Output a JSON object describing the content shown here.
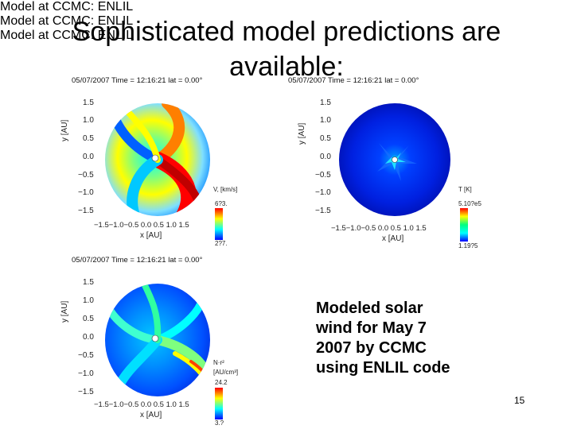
{
  "slide": {
    "title_line1": "Sophisticated model predictions are",
    "title_line2": "available:",
    "caption_lines": [
      "Modeled solar",
      "wind for May 7",
      "2007 by CCMC",
      "using ENLIL code"
    ],
    "page_number": "15"
  },
  "panels": [
    {
      "id": "velocity",
      "header": "05/07/2007  Time = 12:16:21  lat =  0.00°",
      "ylabel": "y  [AU]",
      "xlabel": "x  [AU]",
      "yticks": [
        "1.5",
        "1.0",
        "0.5",
        "0.0",
        "−0.5",
        "−1.0",
        "−1.5"
      ],
      "xticks": "−1.5−1.0−0.5 0.0 0.5 1.0 1.5",
      "colorbar_title": "V, [km/s]",
      "colorbar_max": "6?3.",
      "colorbar_min": "2?7.",
      "footer": "Model at CCMC: ENLIL"
    },
    {
      "id": "temperature",
      "header": "05/07/2007  Time = 12:16:21  lat =  0.00°",
      "ylabel": "y  [AU]",
      "xlabel": "x  [AU]",
      "yticks": [
        "1.5",
        "1.0",
        "0.5",
        "0.0",
        "−0.5",
        "−1.0",
        "−1.5"
      ],
      "xticks": "−1.5−1.0−0.5 0.0 0.5 1.0 1.5",
      "colorbar_title": "T  [K]",
      "colorbar_max": "5.10?e5",
      "colorbar_min": "1.19?5",
      "footer": "Model at CCMC: ENLIL"
    },
    {
      "id": "density",
      "header": "05/07/2007  Time = 12:16:21  lat =  0.00°",
      "ylabel": "y  [AU]",
      "xlabel": "x  [AU]",
      "yticks": [
        "1.5",
        "1.0",
        "0.5",
        "0.0",
        "−0.5",
        "−1.0",
        "−1.5"
      ],
      "xticks": "−1.5−1.0−0.5 0.0 0.5 1.0 1.5",
      "colorbar_title": "N·r²",
      "colorbar_unit": "[AU/cm³]",
      "colorbar_max": "24.2",
      "colorbar_min": "3.?",
      "footer": "Model at CCMC: ENLIL"
    }
  ],
  "colors": {
    "jet": [
      "#00008f",
      "#0000ff",
      "#007fff",
      "#00ffff",
      "#7fff7f",
      "#ffff00",
      "#ff7f00",
      "#ff0000",
      "#8f0000"
    ]
  }
}
